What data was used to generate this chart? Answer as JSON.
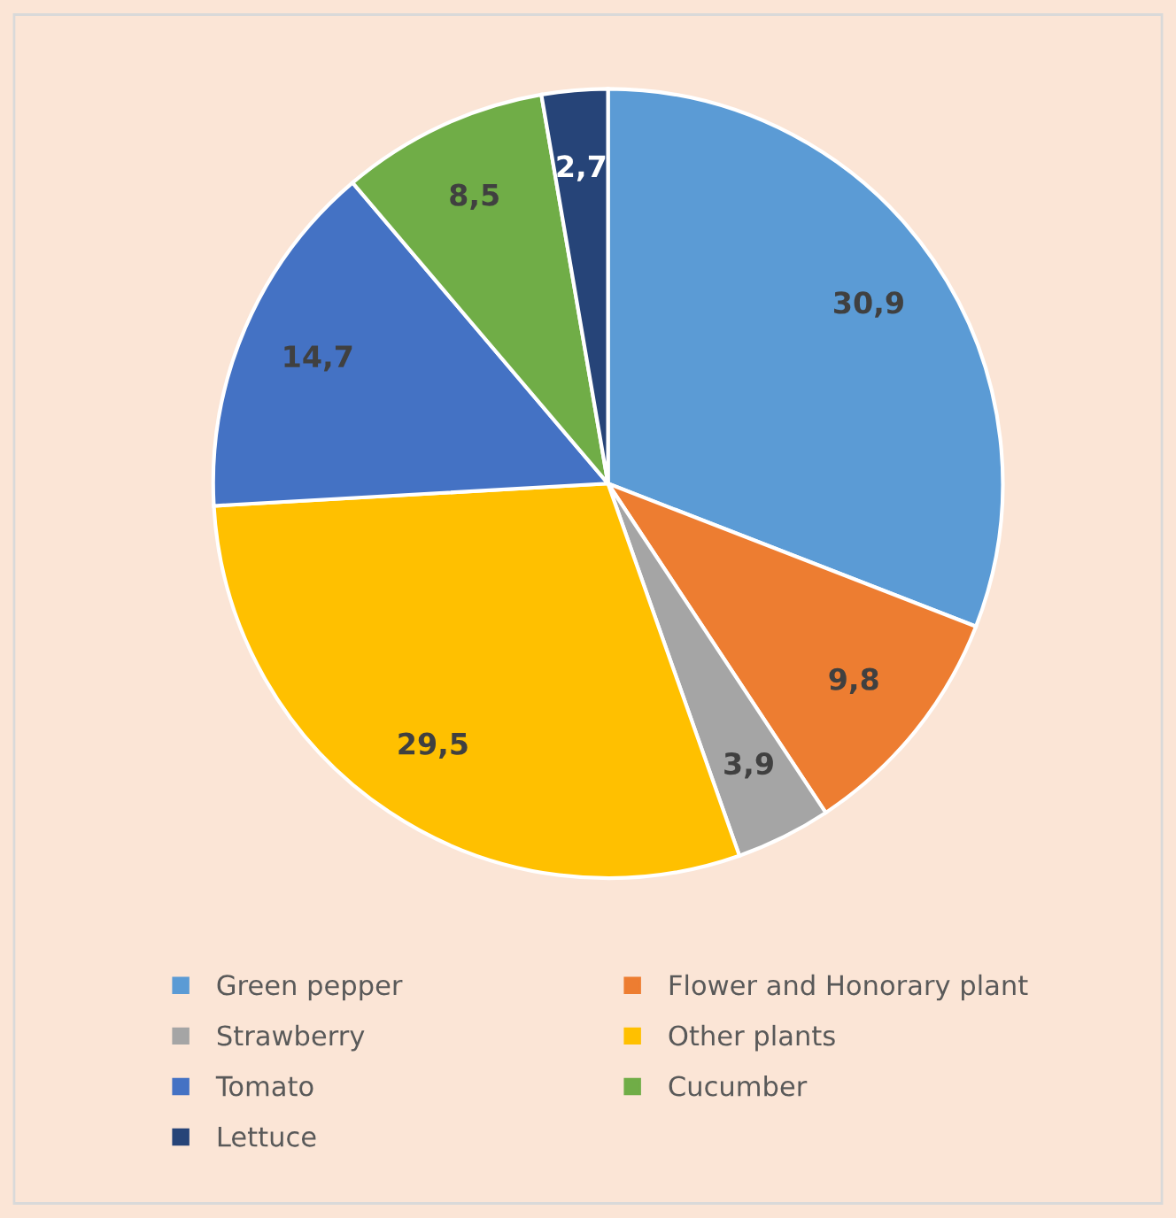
{
  "chart_data": {
    "type": "pie",
    "categories": [
      "Green pepper",
      "Flower and Honorary plant",
      "Strawberry",
      "Other plants",
      "Tomato",
      "Cucumber",
      "Lettuce"
    ],
    "values": [
      30.9,
      9.8,
      3.9,
      29.5,
      14.7,
      8.5,
      2.7
    ],
    "value_labels": [
      "30,9",
      "9,8",
      "3,9",
      "29,5",
      "14,7",
      "8,5",
      "2,7"
    ],
    "colors": [
      "#5b9bd5",
      "#ed7d31",
      "#a5a5a5",
      "#ffc000",
      "#4472c4",
      "#70ad47",
      "#264478"
    ],
    "legend": "bottom"
  }
}
